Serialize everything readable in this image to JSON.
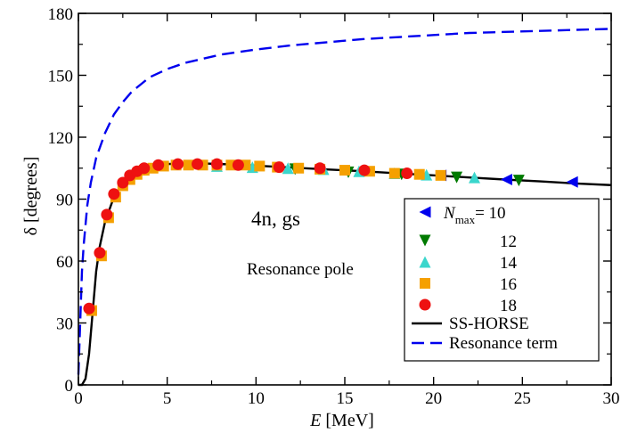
{
  "chart_data": {
    "type": "scatter",
    "xlabel": {
      "var": "E",
      "unit": " [MeV]"
    },
    "ylabel": "δ [degrees]",
    "xlim": [
      0,
      30
    ],
    "ylim": [
      0,
      180
    ],
    "x_ticks": [
      0,
      5,
      10,
      15,
      20,
      25,
      30
    ],
    "y_ticks": [
      0,
      30,
      60,
      90,
      120,
      150,
      180
    ],
    "annotations": [
      "4n, gs",
      "Resonance pole"
    ],
    "legend": {
      "placement": "bottom-right",
      "nmax_symbol": "N",
      "nmax_sub": "max",
      "nmax_eq": "= 10"
    },
    "series": [
      {
        "name": "10",
        "marker": "triangle-left",
        "color": "#0000ee",
        "points": [
          [
            20.4,
            101.5
          ],
          [
            24.1,
            99.5
          ],
          [
            27.8,
            98.3
          ]
        ]
      },
      {
        "name": "12",
        "marker": "triangle-down",
        "color": "#007a00",
        "points": [
          [
            12.2,
            104.5
          ],
          [
            15.2,
            103.0
          ],
          [
            18.2,
            102.0
          ],
          [
            21.3,
            100.5
          ],
          [
            24.8,
            99.0
          ]
        ]
      },
      {
        "name": "14",
        "marker": "triangle-up",
        "color": "#3ad6cc",
        "points": [
          [
            7.8,
            106.0
          ],
          [
            9.8,
            105.5
          ],
          [
            11.8,
            105.0
          ],
          [
            13.8,
            104.5
          ],
          [
            15.8,
            103.5
          ],
          [
            17.8,
            102.5
          ],
          [
            19.6,
            101.8
          ],
          [
            22.3,
            100.5
          ]
        ]
      },
      {
        "name": "16",
        "marker": "square",
        "color": "#f5a000",
        "points": [
          [
            0.75,
            36.0
          ],
          [
            1.3,
            62.5
          ],
          [
            1.7,
            81.0
          ],
          [
            2.1,
            91.0
          ],
          [
            2.5,
            96.5
          ],
          [
            2.9,
            99.5
          ],
          [
            3.3,
            102.0
          ],
          [
            3.7,
            104.0
          ],
          [
            4.2,
            105.0
          ],
          [
            4.8,
            106.0
          ],
          [
            5.5,
            106.5
          ],
          [
            6.2,
            106.5
          ],
          [
            7.0,
            106.5
          ],
          [
            7.8,
            106.5
          ],
          [
            8.6,
            106.5
          ],
          [
            9.4,
            106.5
          ],
          [
            10.2,
            106.0
          ],
          [
            11.2,
            105.5
          ],
          [
            12.4,
            105.0
          ],
          [
            13.6,
            104.5
          ],
          [
            15.0,
            104.0
          ],
          [
            16.4,
            103.5
          ],
          [
            17.8,
            102.5
          ],
          [
            19.2,
            102.0
          ],
          [
            20.4,
            101.5
          ]
        ]
      },
      {
        "name": "18",
        "marker": "circle",
        "color": "#ee1111",
        "points": [
          [
            0.6,
            37.0
          ],
          [
            1.2,
            64.0
          ],
          [
            1.6,
            82.5
          ],
          [
            2.0,
            92.5
          ],
          [
            2.5,
            98.0
          ],
          [
            2.9,
            101.5
          ],
          [
            3.3,
            103.5
          ],
          [
            3.7,
            105.0
          ],
          [
            4.5,
            106.5
          ],
          [
            5.6,
            107.0
          ],
          [
            6.7,
            107.0
          ],
          [
            7.8,
            107.0
          ],
          [
            9.0,
            106.5
          ],
          [
            11.3,
            105.5
          ],
          [
            13.6,
            105.0
          ],
          [
            16.1,
            104.0
          ],
          [
            18.5,
            102.5
          ]
        ]
      },
      {
        "name": "SS-HORSE",
        "style": "solid",
        "color": "#000000",
        "points": [
          [
            0.0,
            0
          ],
          [
            0.2,
            0
          ],
          [
            0.4,
            3
          ],
          [
            0.6,
            15
          ],
          [
            0.8,
            35
          ],
          [
            1.0,
            55
          ],
          [
            1.2,
            67
          ],
          [
            1.5,
            79
          ],
          [
            2.0,
            91
          ],
          [
            2.5,
            97.5
          ],
          [
            3.0,
            101.5
          ],
          [
            3.5,
            104
          ],
          [
            4.0,
            105.5
          ],
          [
            5.0,
            107
          ],
          [
            6.0,
            107.3
          ],
          [
            7.0,
            107.3
          ],
          [
            8.0,
            107
          ],
          [
            9.0,
            106.7
          ],
          [
            10.0,
            106.2
          ],
          [
            12.0,
            105.3
          ],
          [
            14.0,
            104.4
          ],
          [
            16.0,
            103.5
          ],
          [
            18.0,
            102.5
          ],
          [
            20.0,
            101.5
          ],
          [
            22.0,
            100.5
          ],
          [
            24.0,
            99.5
          ],
          [
            26.0,
            98.6
          ],
          [
            28.0,
            97.6
          ],
          [
            30.0,
            96.8
          ]
        ]
      },
      {
        "name": "Resonance term",
        "style": "dashed",
        "color": "#0000ee",
        "points": [
          [
            0.0,
            5
          ],
          [
            0.1,
            30
          ],
          [
            0.2,
            55
          ],
          [
            0.3,
            68
          ],
          [
            0.5,
            87
          ],
          [
            0.7,
            98
          ],
          [
            1.0,
            110
          ],
          [
            1.5,
            122
          ],
          [
            2.0,
            131
          ],
          [
            2.5,
            137
          ],
          [
            3.0,
            142
          ],
          [
            4.0,
            149
          ],
          [
            5.0,
            153
          ],
          [
            6.0,
            156
          ],
          [
            7.0,
            158
          ],
          [
            8.0,
            160
          ],
          [
            10.0,
            162.5
          ],
          [
            12.0,
            164.5
          ],
          [
            14.0,
            166
          ],
          [
            16.0,
            167.5
          ],
          [
            18.0,
            168.5
          ],
          [
            20.0,
            169.5
          ],
          [
            22.0,
            170.5
          ],
          [
            24.0,
            171
          ],
          [
            26.0,
            171.5
          ],
          [
            28.0,
            172
          ],
          [
            30.0,
            172.5
          ]
        ]
      }
    ]
  }
}
